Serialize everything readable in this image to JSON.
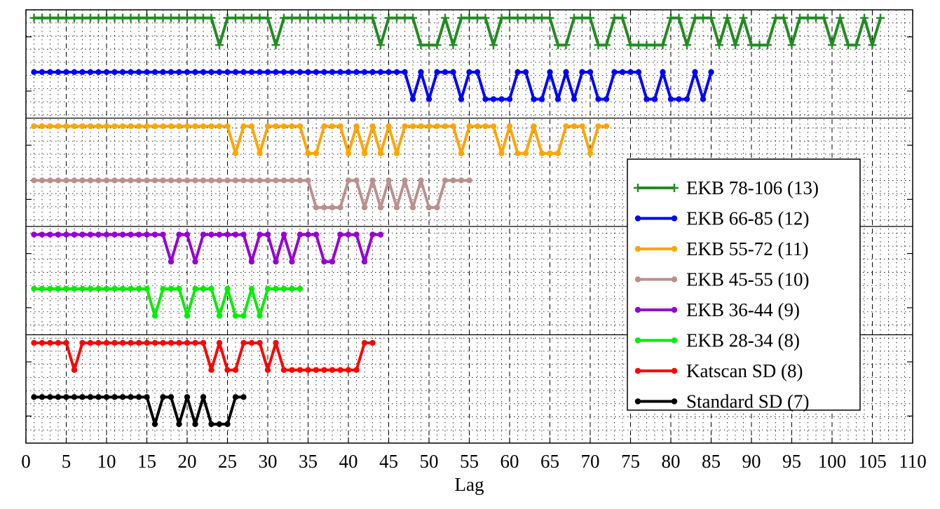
{
  "chart_data": {
    "type": "line",
    "title": "",
    "xlabel": "Lag",
    "ylabel": "",
    "xlim": [
      0,
      110
    ],
    "xticks": [
      0,
      5,
      10,
      15,
      20,
      25,
      30,
      35,
      40,
      45,
      50,
      55,
      60,
      65,
      70,
      75,
      80,
      85,
      90,
      95,
      100,
      105,
      110
    ],
    "grid": true,
    "legend_position": "right",
    "series": [
      {
        "name": "EKB 78-106 (13)",
        "color": "#228b22",
        "marker": "plus",
        "y_high": 1,
        "y_low": 0,
        "x_min": 1,
        "x_max": 106,
        "x_low": [
          24,
          31,
          44,
          49,
          50,
          51,
          53,
          58,
          66,
          67,
          71,
          72,
          75,
          76,
          77,
          78,
          79,
          82,
          86,
          88,
          90,
          91,
          92,
          95,
          100,
          102,
          103,
          105
        ]
      },
      {
        "name": "EKB 66-85 (12)",
        "color": "#0000ff",
        "marker": "dot",
        "y_high": 1,
        "y_low": 0,
        "x_min": 1,
        "x_max": 85,
        "x_low": [
          48,
          50,
          54,
          57,
          58,
          59,
          60,
          63,
          64,
          66,
          68,
          71,
          72,
          77,
          78,
          80,
          81,
          82,
          84
        ]
      },
      {
        "name": "EKB 55-72 (11)",
        "color": "#ffa500",
        "marker": "dot",
        "y_high": 1,
        "y_low": 0,
        "x_min": 1,
        "x_max": 72,
        "x_low": [
          26,
          29,
          35,
          36,
          40,
          42,
          44,
          46,
          54,
          59,
          61,
          62,
          64,
          65,
          66,
          70
        ]
      },
      {
        "name": "EKB 45-55 (10)",
        "color": "#bc8f8f",
        "marker": "dot",
        "y_high": 1,
        "y_low": 0,
        "x_min": 1,
        "x_max": 55,
        "x_low": [
          36,
          37,
          38,
          39,
          42,
          44,
          46,
          48,
          50,
          51
        ]
      },
      {
        "name": "EKB 36-44 (9)",
        "color": "#9400d3",
        "marker": "dot",
        "y_high": 1,
        "y_low": 0,
        "x_min": 1,
        "x_max": 44,
        "x_low": [
          18,
          21,
          28,
          31,
          33,
          37,
          38,
          42
        ]
      },
      {
        "name": "EKB 28-34 (8)",
        "color": "#00ee00",
        "marker": "dot",
        "y_high": 1,
        "y_low": 0,
        "x_min": 1,
        "x_max": 34,
        "x_low": [
          16,
          20,
          24,
          26,
          27,
          29
        ]
      },
      {
        "name": "Katscan SD (8)",
        "color": "#ff0000",
        "marker": "dot",
        "y_high": 1,
        "y_low": 0,
        "x_min": 1,
        "x_max": 43,
        "x_low": [
          6,
          23,
          25,
          26,
          30,
          32,
          33,
          34,
          35,
          36,
          37,
          38,
          39,
          40,
          41
        ]
      },
      {
        "name": "Standard SD (7)",
        "color": "#000000",
        "marker": "dot",
        "y_high": 1,
        "y_low": 0,
        "x_min": 1,
        "x_max": 27,
        "x_low": [
          16,
          19,
          21,
          23,
          24,
          25
        ]
      }
    ]
  }
}
